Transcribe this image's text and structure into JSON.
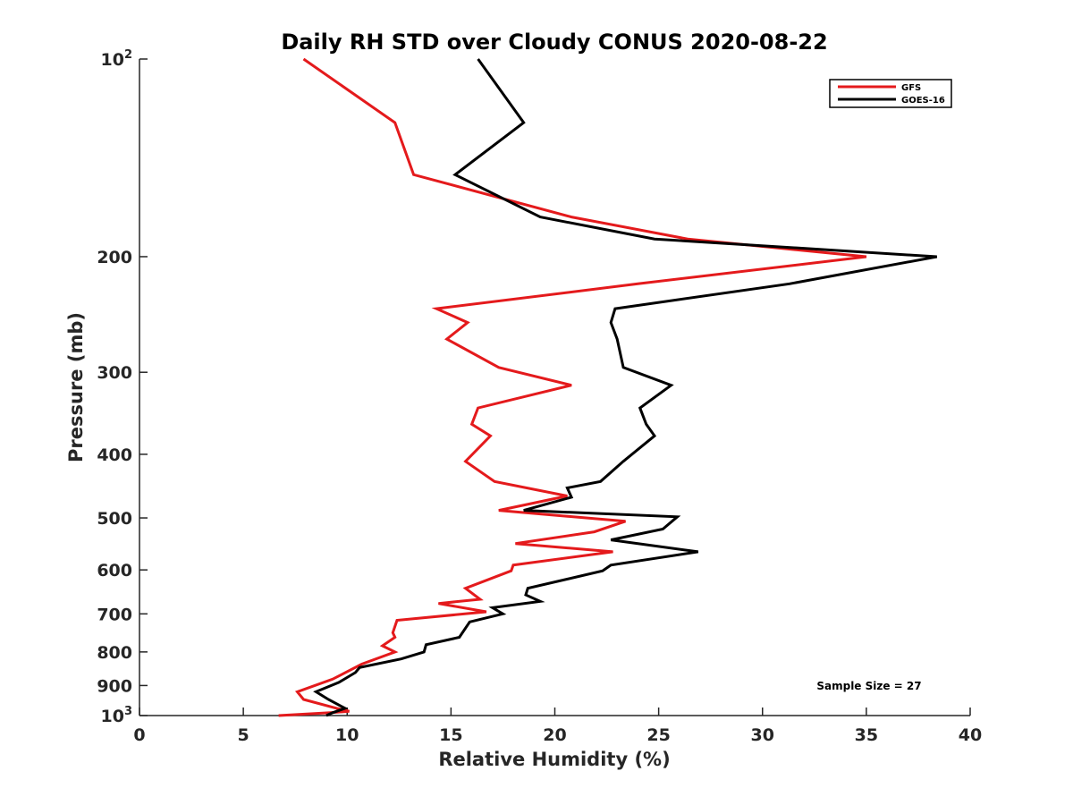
{
  "chart_data": {
    "type": "line",
    "title": "Daily RH STD over Cloudy CONUS 2020-08-22",
    "xlabel": "Relative Humidity (%)",
    "ylabel": "Pressure (mb)",
    "xlim": [
      0,
      40
    ],
    "ylim": [
      100,
      1000
    ],
    "y_scale": "log",
    "y_reversed": true,
    "x_ticks": [
      0,
      5,
      10,
      15,
      20,
      25,
      30,
      35,
      40
    ],
    "x_tick_labels": [
      "0",
      "5",
      "10",
      "15",
      "20",
      "25",
      "30",
      "35",
      "40"
    ],
    "y_ticks": [
      {
        "value": 100,
        "base": "10",
        "exp": "2"
      },
      {
        "value": 200,
        "base": "200",
        "exp": ""
      },
      {
        "value": 300,
        "base": "300",
        "exp": ""
      },
      {
        "value": 400,
        "base": "400",
        "exp": ""
      },
      {
        "value": 500,
        "base": "500",
        "exp": ""
      },
      {
        "value": 600,
        "base": "600",
        "exp": ""
      },
      {
        "value": 700,
        "base": "700",
        "exp": ""
      },
      {
        "value": 800,
        "base": "800",
        "exp": ""
      },
      {
        "value": 900,
        "base": "900",
        "exp": ""
      },
      {
        "value": 1000,
        "base": "10",
        "exp": "3"
      }
    ],
    "grid": false,
    "legend_position": "top-right",
    "annotation": "Sample Size = 27",
    "series": [
      {
        "name": "GFS",
        "color": "#e41a1c",
        "points": [
          [
            7.9,
            100
          ],
          [
            12.3,
            125
          ],
          [
            13.2,
            150
          ],
          [
            20.8,
            174
          ],
          [
            26.4,
            188
          ],
          [
            35.0,
            200
          ],
          [
            24.0,
            220
          ],
          [
            14.3,
            240
          ],
          [
            15.8,
            252
          ],
          [
            14.8,
            267
          ],
          [
            17.3,
            295
          ],
          [
            20.8,
            314
          ],
          [
            16.3,
            340
          ],
          [
            16.0,
            360
          ],
          [
            16.9,
            375
          ],
          [
            15.7,
            410
          ],
          [
            17.1,
            440
          ],
          [
            20.6,
            463
          ],
          [
            17.3,
            487
          ],
          [
            23.4,
            506
          ],
          [
            21.9,
            525
          ],
          [
            18.1,
            547
          ],
          [
            22.8,
            563
          ],
          [
            18.0,
            590
          ],
          [
            17.9,
            602
          ],
          [
            15.7,
            640
          ],
          [
            16.4,
            665
          ],
          [
            14.4,
            675
          ],
          [
            16.7,
            695
          ],
          [
            12.4,
            716
          ],
          [
            12.2,
            748
          ],
          [
            12.3,
            760
          ],
          [
            11.7,
            783
          ],
          [
            12.3,
            800
          ],
          [
            10.7,
            835
          ],
          [
            9.3,
            880
          ],
          [
            7.6,
            920
          ],
          [
            7.9,
            945
          ],
          [
            9.5,
            975
          ],
          [
            10.1,
            985
          ],
          [
            9.2,
            990
          ],
          [
            6.7,
            1000
          ]
        ]
      },
      {
        "name": "GOES-16",
        "color": "#000000",
        "points": [
          [
            16.3,
            100
          ],
          [
            18.5,
            125
          ],
          [
            15.2,
            150
          ],
          [
            19.3,
            174
          ],
          [
            24.8,
            188
          ],
          [
            38.4,
            200
          ],
          [
            31.3,
            220
          ],
          [
            22.9,
            240
          ],
          [
            22.7,
            252
          ],
          [
            23.0,
            267
          ],
          [
            23.3,
            295
          ],
          [
            25.6,
            314
          ],
          [
            24.1,
            340
          ],
          [
            24.4,
            360
          ],
          [
            24.8,
            375
          ],
          [
            23.3,
            410
          ],
          [
            22.2,
            440
          ],
          [
            20.6,
            450
          ],
          [
            20.8,
            465
          ],
          [
            18.5,
            487
          ],
          [
            25.9,
            498
          ],
          [
            25.2,
            520
          ],
          [
            22.7,
            540
          ],
          [
            26.9,
            563
          ],
          [
            22.7,
            590
          ],
          [
            22.3,
            602
          ],
          [
            18.7,
            640
          ],
          [
            18.6,
            655
          ],
          [
            19.3,
            670
          ],
          [
            17.0,
            685
          ],
          [
            17.5,
            700
          ],
          [
            15.9,
            720
          ],
          [
            15.4,
            760
          ],
          [
            13.8,
            780
          ],
          [
            13.7,
            800
          ],
          [
            12.6,
            820
          ],
          [
            10.6,
            845
          ],
          [
            10.4,
            860
          ],
          [
            9.6,
            890
          ],
          [
            8.5,
            920
          ],
          [
            9.1,
            945
          ],
          [
            9.9,
            975
          ],
          [
            9.5,
            985
          ],
          [
            9.3,
            990
          ],
          [
            9.0,
            1000
          ]
        ]
      }
    ]
  }
}
